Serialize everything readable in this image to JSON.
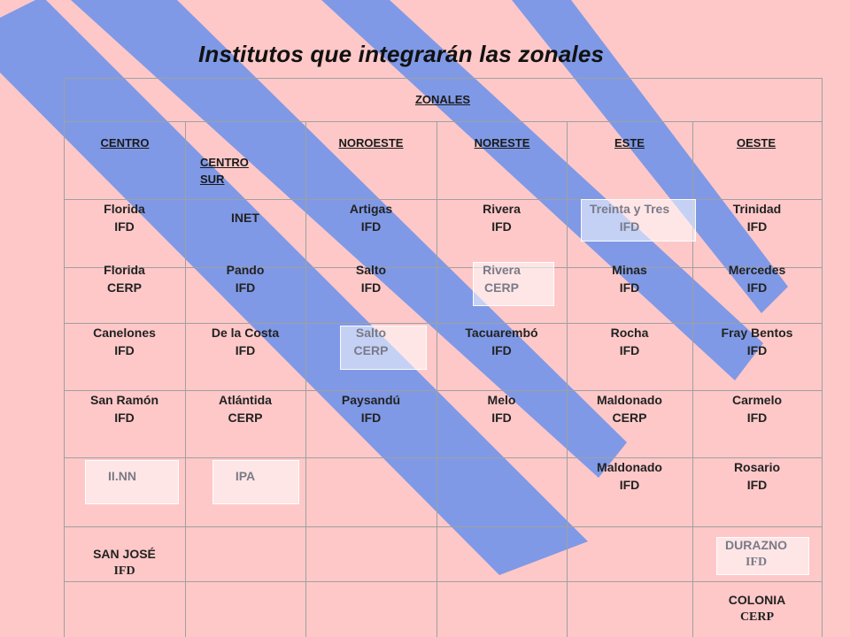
{
  "title": "Institutos que integrarán las zonales",
  "header": {
    "zonales": "ZONALES",
    "centro": "CENTRO",
    "centro_sur_1": "CENTRO",
    "centro_sur_2": "SUR",
    "noroeste": "NOROESTE",
    "noreste": "NORESTE",
    "este": "ESTE",
    "oeste": "OESTE"
  },
  "rows": [
    {
      "centro": [
        "Florida",
        "IFD"
      ],
      "centro_sur": [
        "INET",
        ""
      ],
      "noroeste": [
        "Artigas",
        "IFD"
      ],
      "noreste": [
        "Rivera",
        "IFD"
      ],
      "este": [
        "Treinta y Tres",
        "IFD"
      ],
      "oeste": [
        "Trinidad",
        "IFD"
      ]
    },
    {
      "centro": [
        "Florida",
        "CERP"
      ],
      "centro_sur": [
        "Pando",
        "IFD"
      ],
      "noroeste": [
        "Salto",
        "IFD"
      ],
      "noreste": [
        "Rivera",
        "CERP"
      ],
      "este": [
        "Minas",
        "IFD"
      ],
      "oeste": [
        "Mercedes",
        "IFD"
      ]
    },
    {
      "centro": [
        "Canelones",
        "IFD"
      ],
      "centro_sur": [
        "De la Costa",
        "IFD"
      ],
      "noroeste": [
        "Salto",
        "CERP"
      ],
      "noreste": [
        "Tacuarembó",
        "IFD"
      ],
      "este": [
        "Rocha",
        "IFD"
      ],
      "oeste": [
        "Fray Bentos",
        "IFD"
      ]
    },
    {
      "centro": [
        "San Ramón",
        "IFD"
      ],
      "centro_sur": [
        "Atlántida",
        "CERP"
      ],
      "noroeste": [
        "Paysandú",
        "IFD"
      ],
      "noreste": [
        "Melo",
        "IFD"
      ],
      "este": [
        "Maldonado",
        "CERP"
      ],
      "oeste": [
        "Carmelo",
        "IFD"
      ]
    },
    {
      "centro": [
        "II.NN",
        ""
      ],
      "centro_sur": [
        "IPA",
        ""
      ],
      "noroeste": [
        "",
        ""
      ],
      "noreste": [
        "",
        ""
      ],
      "este": [
        "Maldonado",
        "IFD"
      ],
      "oeste": [
        "Rosario",
        "IFD"
      ]
    },
    {
      "centro": [
        "SAN JOSÉ",
        "IFD"
      ],
      "centro_sur": [
        "",
        ""
      ],
      "noroeste": [
        "",
        ""
      ],
      "noreste": [
        "",
        ""
      ],
      "este": [
        "",
        ""
      ],
      "oeste": [
        "DURAZNO",
        "IFD"
      ]
    },
    {
      "centro": [
        "",
        ""
      ],
      "centro_sur": [
        "",
        ""
      ],
      "noroeste": [
        "",
        ""
      ],
      "noreste": [
        "",
        ""
      ],
      "este": [
        "",
        ""
      ],
      "oeste": [
        "COLONIA",
        "CERP"
      ]
    }
  ],
  "colors": {
    "background": "#fec8c8",
    "stripe": "#7f99e6",
    "grid_line": "#a0a0a0"
  }
}
